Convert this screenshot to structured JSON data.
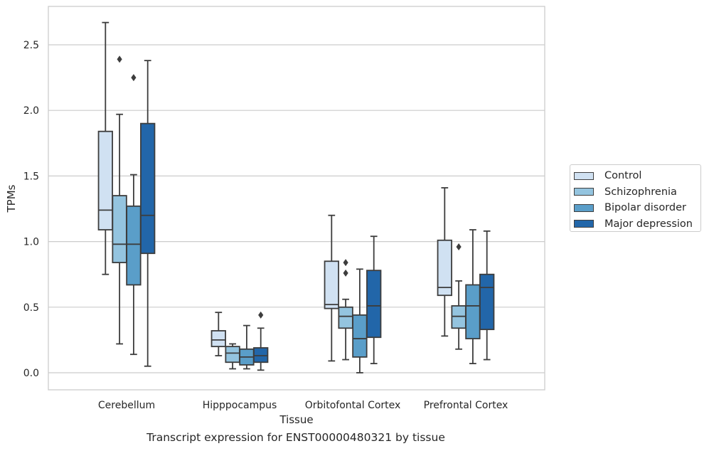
{
  "chart_data": {
    "type": "box",
    "xlabel": "Tissue",
    "ylabel": "TPMs",
    "caption": "Transcript expression for ENST00000480321 by tissue",
    "ylim": [
      -0.13,
      2.8
    ],
    "yticks": [
      "0.0",
      "0.5",
      "1.0",
      "1.5",
      "2.0",
      "2.5"
    ],
    "grid": "horizontal",
    "legend_position": "right",
    "categories": [
      "Cerebellum",
      "Hipppocampus",
      "Orbitofontal Cortex",
      "Prefrontal Cortex"
    ],
    "series": [
      {
        "name": "Control",
        "color": "#d0e1f2",
        "boxes": [
          {
            "whislo": 0.75,
            "q1": 1.09,
            "med": 1.24,
            "q3": 1.84,
            "whishi": 2.67,
            "fliers": []
          },
          {
            "whislo": 0.13,
            "q1": 0.2,
            "med": 0.25,
            "q3": 0.32,
            "whishi": 0.46,
            "fliers": []
          },
          {
            "whislo": 0.09,
            "q1": 0.49,
            "med": 0.52,
            "q3": 0.85,
            "whishi": 1.2,
            "fliers": []
          },
          {
            "whislo": 0.28,
            "q1": 0.59,
            "med": 0.65,
            "q3": 1.01,
            "whishi": 1.41,
            "fliers": []
          }
        ]
      },
      {
        "name": "Schizophrenia",
        "color": "#94c4df",
        "boxes": [
          {
            "whislo": 0.22,
            "q1": 0.84,
            "med": 0.98,
            "q3": 1.35,
            "whishi": 1.97,
            "fliers": [
              2.39
            ]
          },
          {
            "whislo": 0.03,
            "q1": 0.08,
            "med": 0.15,
            "q3": 0.2,
            "whishi": 0.22,
            "fliers": []
          },
          {
            "whislo": 0.1,
            "q1": 0.34,
            "med": 0.43,
            "q3": 0.5,
            "whishi": 0.56,
            "fliers": [
              0.84,
              0.76
            ]
          },
          {
            "whislo": 0.18,
            "q1": 0.34,
            "med": 0.43,
            "q3": 0.51,
            "whishi": 0.7,
            "fliers": [
              0.96
            ]
          }
        ]
      },
      {
        "name": "Bipolar disorder",
        "color": "#5a9ec9",
        "boxes": [
          {
            "whislo": 0.14,
            "q1": 0.67,
            "med": 0.98,
            "q3": 1.27,
            "whishi": 1.51,
            "fliers": [
              2.25
            ]
          },
          {
            "whislo": 0.03,
            "q1": 0.06,
            "med": 0.12,
            "q3": 0.18,
            "whishi": 0.36,
            "fliers": []
          },
          {
            "whislo": 0.0,
            "q1": 0.12,
            "med": 0.26,
            "q3": 0.44,
            "whishi": 0.79,
            "fliers": []
          },
          {
            "whislo": 0.07,
            "q1": 0.26,
            "med": 0.51,
            "q3": 0.67,
            "whishi": 1.09,
            "fliers": []
          }
        ]
      },
      {
        "name": "Major depression",
        "color": "#2266a9",
        "boxes": [
          {
            "whislo": 0.05,
            "q1": 0.91,
            "med": 1.2,
            "q3": 1.9,
            "whishi": 2.38,
            "fliers": []
          },
          {
            "whislo": 0.02,
            "q1": 0.08,
            "med": 0.13,
            "q3": 0.19,
            "whishi": 0.34,
            "fliers": [
              0.44
            ]
          },
          {
            "whislo": 0.07,
            "q1": 0.27,
            "med": 0.51,
            "q3": 0.78,
            "whishi": 1.04,
            "fliers": []
          },
          {
            "whislo": 0.1,
            "q1": 0.33,
            "med": 0.65,
            "q3": 0.75,
            "whishi": 1.08,
            "fliers": []
          }
        ]
      }
    ]
  }
}
